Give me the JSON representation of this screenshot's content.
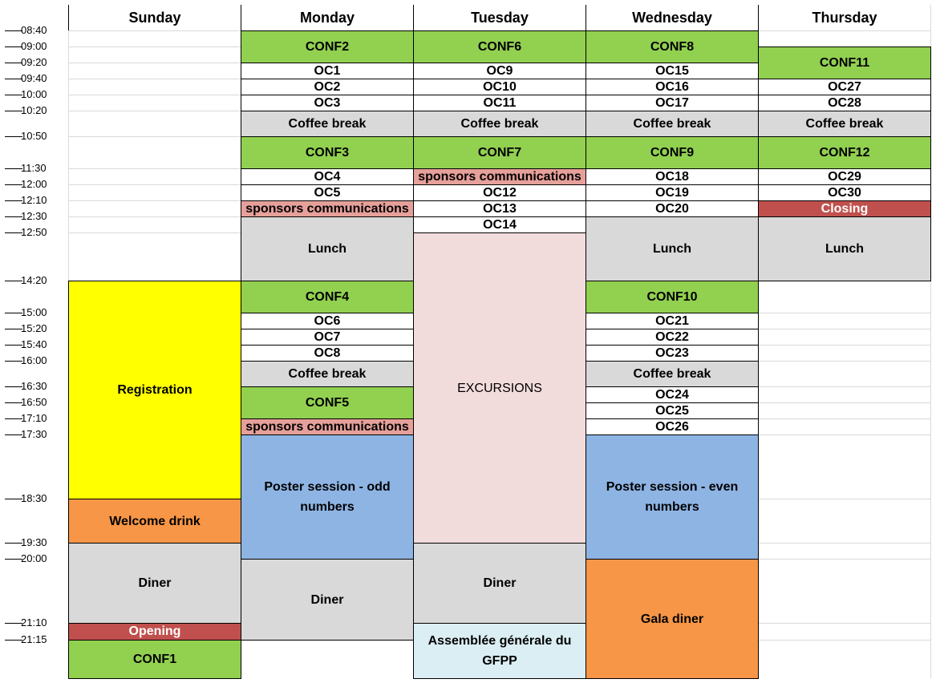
{
  "days": [
    "Sunday",
    "Monday",
    "Tuesday",
    "Wednesday",
    "Thursday"
  ],
  "times": [
    "08:40",
    "09:00",
    "09:20",
    "09:40",
    "10:00",
    "10:20",
    "10:50",
    "11:30",
    "12:00",
    "12:10",
    "12:30",
    "12:50",
    "14:20",
    "15:00",
    "15:20",
    "15:40",
    "16:00",
    "16:30",
    "16:50",
    "17:10",
    "17:30",
    "18:30",
    "19:30",
    "20:00",
    "21:10",
    "21:15"
  ],
  "colors": {
    "conf": "#92d050",
    "oc": "#ffffff",
    "break": "#d9d9d9",
    "sponsors": "#e6a09a",
    "closing": "#c0504d",
    "registration": "#ffff00",
    "orange": "#f79646",
    "poster": "#8eb4e3",
    "excursion": "#f2dcdb",
    "assembly": "#dbeef4"
  },
  "events": [
    {
      "day": 0,
      "start": "14:20",
      "end": "18:30",
      "label": "Registration",
      "kind": "registration"
    },
    {
      "day": 0,
      "start": "18:30",
      "end": "19:30",
      "label": "Welcome drink",
      "kind": "orange"
    },
    {
      "day": 0,
      "start": "19:30",
      "end": "21:10",
      "label": "Diner",
      "kind": "break"
    },
    {
      "day": 0,
      "start": "21:10",
      "end": "21:15",
      "label": "Opening",
      "kind": "closing"
    },
    {
      "day": 0,
      "start": "21:15",
      "end": "END",
      "label": "CONF1",
      "kind": "conf"
    },
    {
      "day": 1,
      "start": "08:40",
      "end": "09:20",
      "label": "CONF2",
      "kind": "conf"
    },
    {
      "day": 1,
      "start": "09:20",
      "end": "09:40",
      "label": "OC1",
      "kind": "oc"
    },
    {
      "day": 1,
      "start": "09:40",
      "end": "10:00",
      "label": "OC2",
      "kind": "oc"
    },
    {
      "day": 1,
      "start": "10:00",
      "end": "10:20",
      "label": "OC3",
      "kind": "oc"
    },
    {
      "day": 1,
      "start": "10:20",
      "end": "10:50",
      "label": "Coffee break",
      "kind": "break"
    },
    {
      "day": 1,
      "start": "10:50",
      "end": "11:30",
      "label": "CONF3",
      "kind": "conf"
    },
    {
      "day": 1,
      "start": "11:30",
      "end": "12:00",
      "label": "OC4",
      "kind": "oc"
    },
    {
      "day": 1,
      "start": "12:00",
      "end": "12:10",
      "label": "OC5",
      "kind": "oc"
    },
    {
      "day": 1,
      "start": "12:10",
      "end": "12:30",
      "label": "sponsors communications",
      "kind": "sponsors"
    },
    {
      "day": 1,
      "start": "12:30",
      "end": "14:20",
      "label": "Lunch",
      "kind": "break"
    },
    {
      "day": 1,
      "start": "14:20",
      "end": "15:00",
      "label": "CONF4",
      "kind": "conf"
    },
    {
      "day": 1,
      "start": "15:00",
      "end": "15:20",
      "label": "OC6",
      "kind": "oc"
    },
    {
      "day": 1,
      "start": "15:20",
      "end": "15:40",
      "label": "OC7",
      "kind": "oc"
    },
    {
      "day": 1,
      "start": "15:40",
      "end": "16:00",
      "label": "OC8",
      "kind": "oc"
    },
    {
      "day": 1,
      "start": "16:00",
      "end": "16:30",
      "label": "Coffee break",
      "kind": "break"
    },
    {
      "day": 1,
      "start": "16:30",
      "end": "17:10",
      "label": "CONF5",
      "kind": "conf"
    },
    {
      "day": 1,
      "start": "17:10",
      "end": "17:30",
      "label": "sponsors communications",
      "kind": "sponsors"
    },
    {
      "day": 1,
      "start": "17:30",
      "end": "20:00",
      "label": "Poster session - odd numbers",
      "kind": "poster"
    },
    {
      "day": 1,
      "start": "20:00",
      "end": "21:15",
      "label": "Diner",
      "kind": "break"
    },
    {
      "day": 2,
      "start": "08:40",
      "end": "09:20",
      "label": "CONF6",
      "kind": "conf"
    },
    {
      "day": 2,
      "start": "09:20",
      "end": "09:40",
      "label": "OC9",
      "kind": "oc"
    },
    {
      "day": 2,
      "start": "09:40",
      "end": "10:00",
      "label": "OC10",
      "kind": "oc"
    },
    {
      "day": 2,
      "start": "10:00",
      "end": "10:20",
      "label": "OC11",
      "kind": "oc"
    },
    {
      "day": 2,
      "start": "10:20",
      "end": "10:50",
      "label": "Coffee break",
      "kind": "break"
    },
    {
      "day": 2,
      "start": "10:50",
      "end": "11:30",
      "label": "CONF7",
      "kind": "conf"
    },
    {
      "day": 2,
      "start": "11:30",
      "end": "12:00",
      "label": "sponsors communications",
      "kind": "sponsors"
    },
    {
      "day": 2,
      "start": "12:00",
      "end": "12:10",
      "label": "OC12",
      "kind": "oc"
    },
    {
      "day": 2,
      "start": "12:10",
      "end": "12:30",
      "label": "OC13",
      "kind": "oc"
    },
    {
      "day": 2,
      "start": "12:30",
      "end": "12:50",
      "label": "OC14",
      "kind": "oc"
    },
    {
      "day": 2,
      "start": "12:50",
      "end": "19:30",
      "label": "EXCURSIONS",
      "kind": "excursion",
      "plain": true
    },
    {
      "day": 2,
      "start": "19:30",
      "end": "21:10",
      "label": "Diner",
      "kind": "break"
    },
    {
      "day": 2,
      "start": "21:10",
      "end": "END",
      "label": "Assemblée générale du GFPP",
      "kind": "assembly"
    },
    {
      "day": 3,
      "start": "08:40",
      "end": "09:20",
      "label": "CONF8",
      "kind": "conf"
    },
    {
      "day": 3,
      "start": "09:20",
      "end": "09:40",
      "label": "OC15",
      "kind": "oc"
    },
    {
      "day": 3,
      "start": "09:40",
      "end": "10:00",
      "label": "OC16",
      "kind": "oc"
    },
    {
      "day": 3,
      "start": "10:00",
      "end": "10:20",
      "label": "OC17",
      "kind": "oc"
    },
    {
      "day": 3,
      "start": "10:20",
      "end": "10:50",
      "label": "Coffee break",
      "kind": "break"
    },
    {
      "day": 3,
      "start": "10:50",
      "end": "11:30",
      "label": "CONF9",
      "kind": "conf"
    },
    {
      "day": 3,
      "start": "11:30",
      "end": "12:00",
      "label": "OC18",
      "kind": "oc"
    },
    {
      "day": 3,
      "start": "12:00",
      "end": "12:10",
      "label": "OC19",
      "kind": "oc"
    },
    {
      "day": 3,
      "start": "12:10",
      "end": "12:30",
      "label": "OC20",
      "kind": "oc"
    },
    {
      "day": 3,
      "start": "12:30",
      "end": "14:20",
      "label": "Lunch",
      "kind": "break"
    },
    {
      "day": 3,
      "start": "14:20",
      "end": "15:00",
      "label": "CONF10",
      "kind": "conf"
    },
    {
      "day": 3,
      "start": "15:00",
      "end": "15:20",
      "label": "OC21",
      "kind": "oc"
    },
    {
      "day": 3,
      "start": "15:20",
      "end": "15:40",
      "label": "OC22",
      "kind": "oc"
    },
    {
      "day": 3,
      "start": "15:40",
      "end": "16:00",
      "label": "OC23",
      "kind": "oc"
    },
    {
      "day": 3,
      "start": "16:00",
      "end": "16:30",
      "label": "Coffee break",
      "kind": "break"
    },
    {
      "day": 3,
      "start": "16:30",
      "end": "16:50",
      "label": "OC24",
      "kind": "oc"
    },
    {
      "day": 3,
      "start": "16:50",
      "end": "17:10",
      "label": "OC25",
      "kind": "oc"
    },
    {
      "day": 3,
      "start": "17:10",
      "end": "17:30",
      "label": "OC26",
      "kind": "oc"
    },
    {
      "day": 3,
      "start": "17:30",
      "end": "20:00",
      "label": "Poster session - even numbers",
      "kind": "poster"
    },
    {
      "day": 3,
      "start": "20:00",
      "end": "END",
      "label": "Gala diner",
      "kind": "orange"
    },
    {
      "day": 4,
      "start": "09:00",
      "end": "09:40",
      "label": "CONF11",
      "kind": "conf"
    },
    {
      "day": 4,
      "start": "09:40",
      "end": "10:00",
      "label": "OC27",
      "kind": "oc"
    },
    {
      "day": 4,
      "start": "10:00",
      "end": "10:20",
      "label": "OC28",
      "kind": "oc"
    },
    {
      "day": 4,
      "start": "10:20",
      "end": "10:50",
      "label": "Coffee break",
      "kind": "break"
    },
    {
      "day": 4,
      "start": "10:50",
      "end": "11:30",
      "label": "CONF12",
      "kind": "conf"
    },
    {
      "day": 4,
      "start": "11:30",
      "end": "12:00",
      "label": "OC29",
      "kind": "oc"
    },
    {
      "day": 4,
      "start": "12:00",
      "end": "12:10",
      "label": "OC30",
      "kind": "oc"
    },
    {
      "day": 4,
      "start": "12:10",
      "end": "12:30",
      "label": "Closing",
      "kind": "closing"
    },
    {
      "day": 4,
      "start": "12:30",
      "end": "14:20",
      "label": "Lunch",
      "kind": "break"
    }
  ]
}
